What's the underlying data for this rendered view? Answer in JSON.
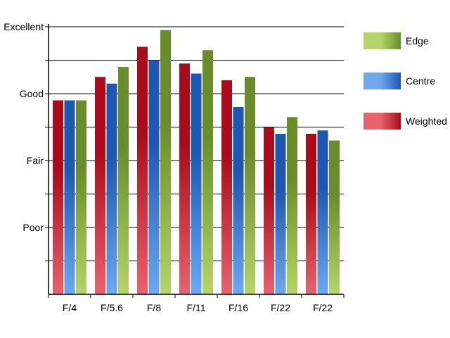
{
  "chart_data": {
    "type": "bar",
    "categories": [
      "F/4",
      "F/5.6",
      "F/8",
      "F/11",
      "F/16",
      "F/22",
      "F/22"
    ],
    "y_tick_labels": [
      "Poor",
      "Fair",
      "Good",
      "Excellent"
    ],
    "y_tick_values": [
      1,
      2,
      3,
      4
    ],
    "ylim": [
      0,
      4
    ],
    "grid": true,
    "legend_position": "right",
    "series": [
      {
        "name": "Weighted",
        "values": [
          2.9,
          3.25,
          3.7,
          3.45,
          3.2,
          2.5,
          2.4
        ],
        "color_dark": "#a80c1c",
        "color_light": "#e8636e"
      },
      {
        "name": "Centre",
        "values": [
          2.9,
          3.15,
          3.5,
          3.3,
          2.8,
          2.4,
          2.45
        ],
        "color_dark": "#1f56b0",
        "color_light": "#6ea8ef"
      },
      {
        "name": "Edge",
        "values": [
          2.9,
          3.4,
          3.95,
          3.65,
          3.25,
          2.65,
          2.3
        ],
        "color_dark": "#6a8c2a",
        "color_light": "#b5d46a"
      }
    ],
    "legend_order": [
      "Edge",
      "Centre",
      "Weighted"
    ]
  }
}
